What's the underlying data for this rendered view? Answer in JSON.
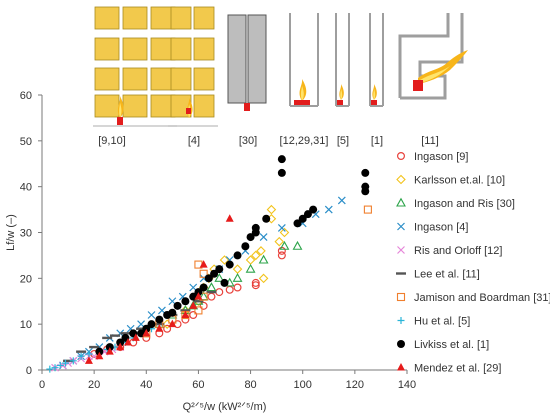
{
  "chart_data": {
    "type": "scatter",
    "xlabel": "Q²ᐟ⁵/w (kW²ᐟ⁵/m)",
    "ylabel": "Lf/w (–)",
    "xlim": [
      0,
      140
    ],
    "ylim": [
      0,
      60
    ],
    "xticks": [
      0,
      20,
      40,
      60,
      80,
      100,
      120,
      140
    ],
    "yticks": [
      0,
      10,
      20,
      30,
      40,
      50,
      60
    ],
    "grid": false,
    "legend_position": "right",
    "reference_labels": [
      "[9,10]",
      "[4]",
      "[30]",
      "[12,29,31]",
      "[5]",
      "[1]",
      "[11]"
    ],
    "series": [
      {
        "name": "Ingason [9]",
        "marker": "circle-open",
        "color": "#e8413b",
        "points": [
          [
            20,
            3.5
          ],
          [
            25,
            4.5
          ],
          [
            30,
            5
          ],
          [
            35,
            6
          ],
          [
            40,
            7
          ],
          [
            45,
            8
          ],
          [
            48,
            9
          ],
          [
            52,
            10
          ],
          [
            55,
            11
          ],
          [
            58,
            12
          ],
          [
            62,
            14
          ],
          [
            65,
            16
          ],
          [
            68,
            17
          ],
          [
            72,
            17.5
          ],
          [
            75,
            18
          ],
          [
            82,
            19
          ],
          [
            82,
            18.5
          ],
          [
            92,
            25
          ],
          [
            92,
            26
          ]
        ]
      },
      {
        "name": "Karlsson et.al. [10]",
        "marker": "diamond-open",
        "color": "#f2c31b",
        "points": [
          [
            48,
            10
          ],
          [
            55,
            13
          ],
          [
            60,
            15
          ],
          [
            62,
            18
          ],
          [
            64,
            20
          ],
          [
            66,
            22
          ],
          [
            70,
            24
          ],
          [
            75,
            22
          ],
          [
            80,
            24
          ],
          [
            82,
            25
          ],
          [
            84,
            26
          ],
          [
            85,
            20
          ],
          [
            88,
            33
          ],
          [
            88,
            35
          ],
          [
            91,
            28
          ],
          [
            93,
            30
          ]
        ]
      },
      {
        "name": "Ingason and Ris [30]",
        "marker": "triangle-open",
        "color": "#2ca44a",
        "points": [
          [
            45,
            10
          ],
          [
            50,
            12
          ],
          [
            55,
            13
          ],
          [
            58,
            14
          ],
          [
            60,
            15
          ],
          [
            62,
            16
          ],
          [
            65,
            18
          ],
          [
            68,
            20
          ],
          [
            72,
            19
          ],
          [
            75,
            20
          ],
          [
            80,
            22
          ],
          [
            85,
            24
          ],
          [
            93,
            27
          ],
          [
            98,
            27
          ]
        ]
      },
      {
        "name": "Ingason [4]",
        "marker": "x",
        "color": "#2b8ec8",
        "points": [
          [
            8,
            1
          ],
          [
            12,
            2
          ],
          [
            15,
            3
          ],
          [
            18,
            4
          ],
          [
            22,
            5
          ],
          [
            26,
            7
          ],
          [
            30,
            8
          ],
          [
            34,
            9
          ],
          [
            38,
            10
          ],
          [
            42,
            12
          ],
          [
            46,
            13
          ],
          [
            50,
            15
          ],
          [
            54,
            16
          ],
          [
            58,
            18
          ],
          [
            62,
            20
          ],
          [
            68,
            22
          ],
          [
            72,
            24
          ],
          [
            78,
            26
          ],
          [
            85,
            29
          ],
          [
            92,
            31
          ],
          [
            100,
            32
          ],
          [
            105,
            34
          ],
          [
            110,
            35
          ],
          [
            115,
            37
          ]
        ]
      },
      {
        "name": "Ris and Orloff [12]",
        "marker": "x",
        "color": "#e686d9",
        "points": [
          [
            5,
            0.5
          ],
          [
            8,
            1
          ],
          [
            10,
            1.5
          ],
          [
            12,
            2
          ],
          [
            15,
            2.5
          ],
          [
            18,
            3
          ],
          [
            20,
            3
          ],
          [
            24,
            4
          ],
          [
            27,
            4.5
          ],
          [
            30,
            5
          ]
        ]
      },
      {
        "name": "Lee et al. [11]",
        "marker": "dash",
        "color": "#555555",
        "points": [
          [
            10,
            2
          ],
          [
            15,
            4
          ],
          [
            20,
            5
          ],
          [
            25,
            7
          ],
          [
            28,
            7.5
          ],
          [
            32,
            8
          ],
          [
            38,
            9
          ],
          [
            45,
            10
          ],
          [
            50,
            12
          ],
          [
            55,
            13
          ],
          [
            60,
            15
          ],
          [
            65,
            17
          ]
        ]
      },
      {
        "name": "Jamison and Boardman [31]",
        "marker": "square-open",
        "color": "#f07f2d",
        "points": [
          [
            40,
            8
          ],
          [
            45,
            10
          ],
          [
            50,
            11
          ],
          [
            55,
            12
          ],
          [
            60,
            13
          ],
          [
            60,
            23
          ],
          [
            62,
            21
          ],
          [
            62,
            16
          ],
          [
            125,
            35
          ]
        ]
      },
      {
        "name": "Hu et al. [5]",
        "marker": "plus",
        "color": "#2ab5d8",
        "points": [
          [
            3,
            0.2
          ],
          [
            5,
            0.5
          ],
          [
            7,
            1
          ],
          [
            9,
            1.5
          ],
          [
            12,
            2
          ],
          [
            15,
            3
          ],
          [
            18,
            3.5
          ],
          [
            22,
            4
          ],
          [
            25,
            4.5
          ],
          [
            28,
            5
          ],
          [
            32,
            6
          ],
          [
            35,
            7
          ],
          [
            38,
            8
          ],
          [
            42,
            9
          ]
        ]
      },
      {
        "name": "Livkiss et al. [1]",
        "marker": "circle-filled",
        "color": "#000000",
        "points": [
          [
            22,
            4
          ],
          [
            26,
            5
          ],
          [
            30,
            6
          ],
          [
            32,
            7
          ],
          [
            35,
            8
          ],
          [
            38,
            8
          ],
          [
            40,
            9
          ],
          [
            42,
            10
          ],
          [
            45,
            11
          ],
          [
            48,
            12
          ],
          [
            50,
            12.5
          ],
          [
            52,
            14
          ],
          [
            55,
            15
          ],
          [
            58,
            16
          ],
          [
            60,
            17
          ],
          [
            62,
            18
          ],
          [
            64,
            20
          ],
          [
            66,
            21
          ],
          [
            68,
            22
          ],
          [
            70,
            19
          ],
          [
            72,
            23
          ],
          [
            75,
            25
          ],
          [
            78,
            27
          ],
          [
            80,
            29
          ],
          [
            82,
            31
          ],
          [
            82,
            30
          ],
          [
            86,
            33
          ],
          [
            92,
            43
          ],
          [
            92,
            46
          ],
          [
            98,
            32
          ],
          [
            100,
            33
          ],
          [
            102,
            34
          ],
          [
            104,
            35
          ],
          [
            124,
            39
          ],
          [
            124,
            40
          ],
          [
            124,
            43
          ]
        ]
      },
      {
        "name": "Mendez et al. [29]",
        "marker": "triangle-filled",
        "color": "#e61b1b",
        "points": [
          [
            18,
            2
          ],
          [
            22,
            3
          ],
          [
            26,
            4
          ],
          [
            30,
            5
          ],
          [
            33,
            6
          ],
          [
            36,
            7
          ],
          [
            40,
            8
          ],
          [
            45,
            9
          ],
          [
            50,
            10
          ],
          [
            55,
            12
          ],
          [
            58,
            14
          ],
          [
            60,
            16
          ],
          [
            62,
            23
          ],
          [
            72,
            33
          ]
        ]
      }
    ]
  }
}
